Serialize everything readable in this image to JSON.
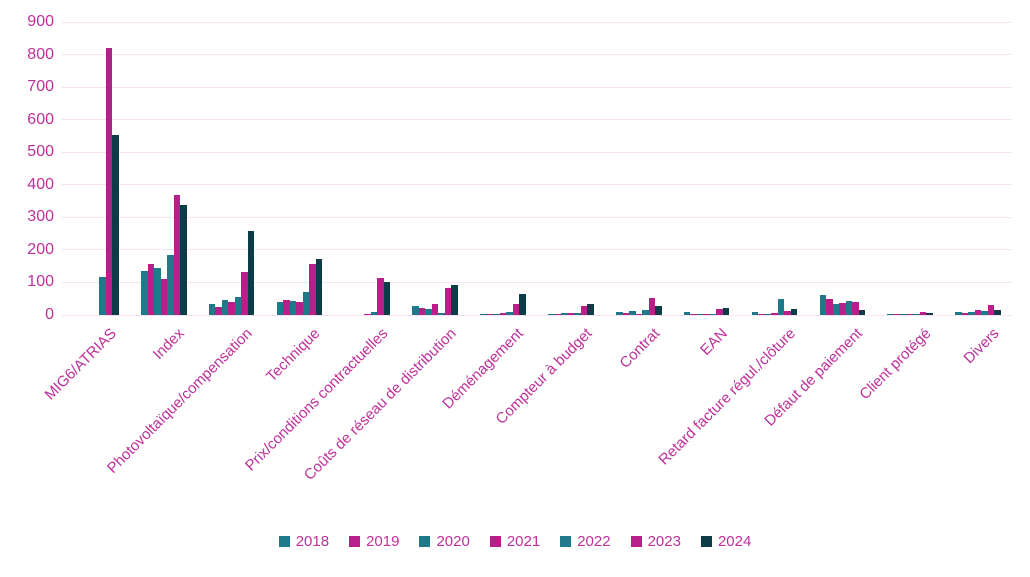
{
  "chart_data": {
    "type": "bar",
    "title": "",
    "xlabel": "",
    "ylabel": "",
    "ylim": [
      0,
      900
    ],
    "yticks": [
      0,
      100,
      200,
      300,
      400,
      500,
      600,
      700,
      800,
      900
    ],
    "grid": "horizontal",
    "legend_position": "bottom",
    "categories": [
      "MIG6/ATRIAS",
      "Index",
      "Photovoltaïque/compensation",
      "Technique",
      "Prix/conditions contractuelles",
      "Coûts de réseau de distribution",
      "Déménagement",
      "Compteur à budget",
      "Contrat",
      "EAN",
      "Retard facture régul./clôture",
      "Défaut de paiement",
      "Client protégé",
      "Divers"
    ],
    "series": [
      {
        "name": "2018",
        "color": "#1e7a89",
        "values": [
          0,
          135,
          33,
          41,
          0,
          28,
          4,
          4,
          8,
          8,
          9,
          62,
          2,
          8
        ]
      },
      {
        "name": "2019",
        "color": "#b81f8a",
        "values": [
          0,
          158,
          25,
          46,
          0,
          23,
          3,
          3,
          7,
          2,
          3,
          48,
          2,
          5
        ]
      },
      {
        "name": "2020",
        "color": "#1e7a89",
        "values": [
          0,
          143,
          45,
          43,
          0,
          20,
          4,
          5,
          11,
          2,
          4,
          35,
          2,
          10
        ]
      },
      {
        "name": "2021",
        "color": "#b81f8a",
        "values": [
          0,
          110,
          40,
          40,
          2,
          33,
          6,
          7,
          4,
          3,
          5,
          38,
          3,
          15
        ]
      },
      {
        "name": "2022",
        "color": "#1e7a89",
        "values": [
          118,
          185,
          56,
          72,
          8,
          5,
          8,
          6,
          16,
          3,
          48,
          42,
          3,
          12
        ]
      },
      {
        "name": "2023",
        "color": "#b81f8a",
        "values": [
          820,
          368,
          133,
          158,
          115,
          82,
          33,
          28,
          53,
          18,
          12,
          40,
          10,
          30
        ]
      },
      {
        "name": "2024",
        "color": "#0d3b47",
        "values": [
          552,
          338,
          258,
          172,
          100,
          92,
          66,
          33,
          29,
          22,
          17,
          15,
          5,
          15
        ]
      }
    ]
  },
  "colors": {
    "axis_text": "#bf2f9b",
    "gridline": "#f7e1f3",
    "background": "#ffffff"
  }
}
